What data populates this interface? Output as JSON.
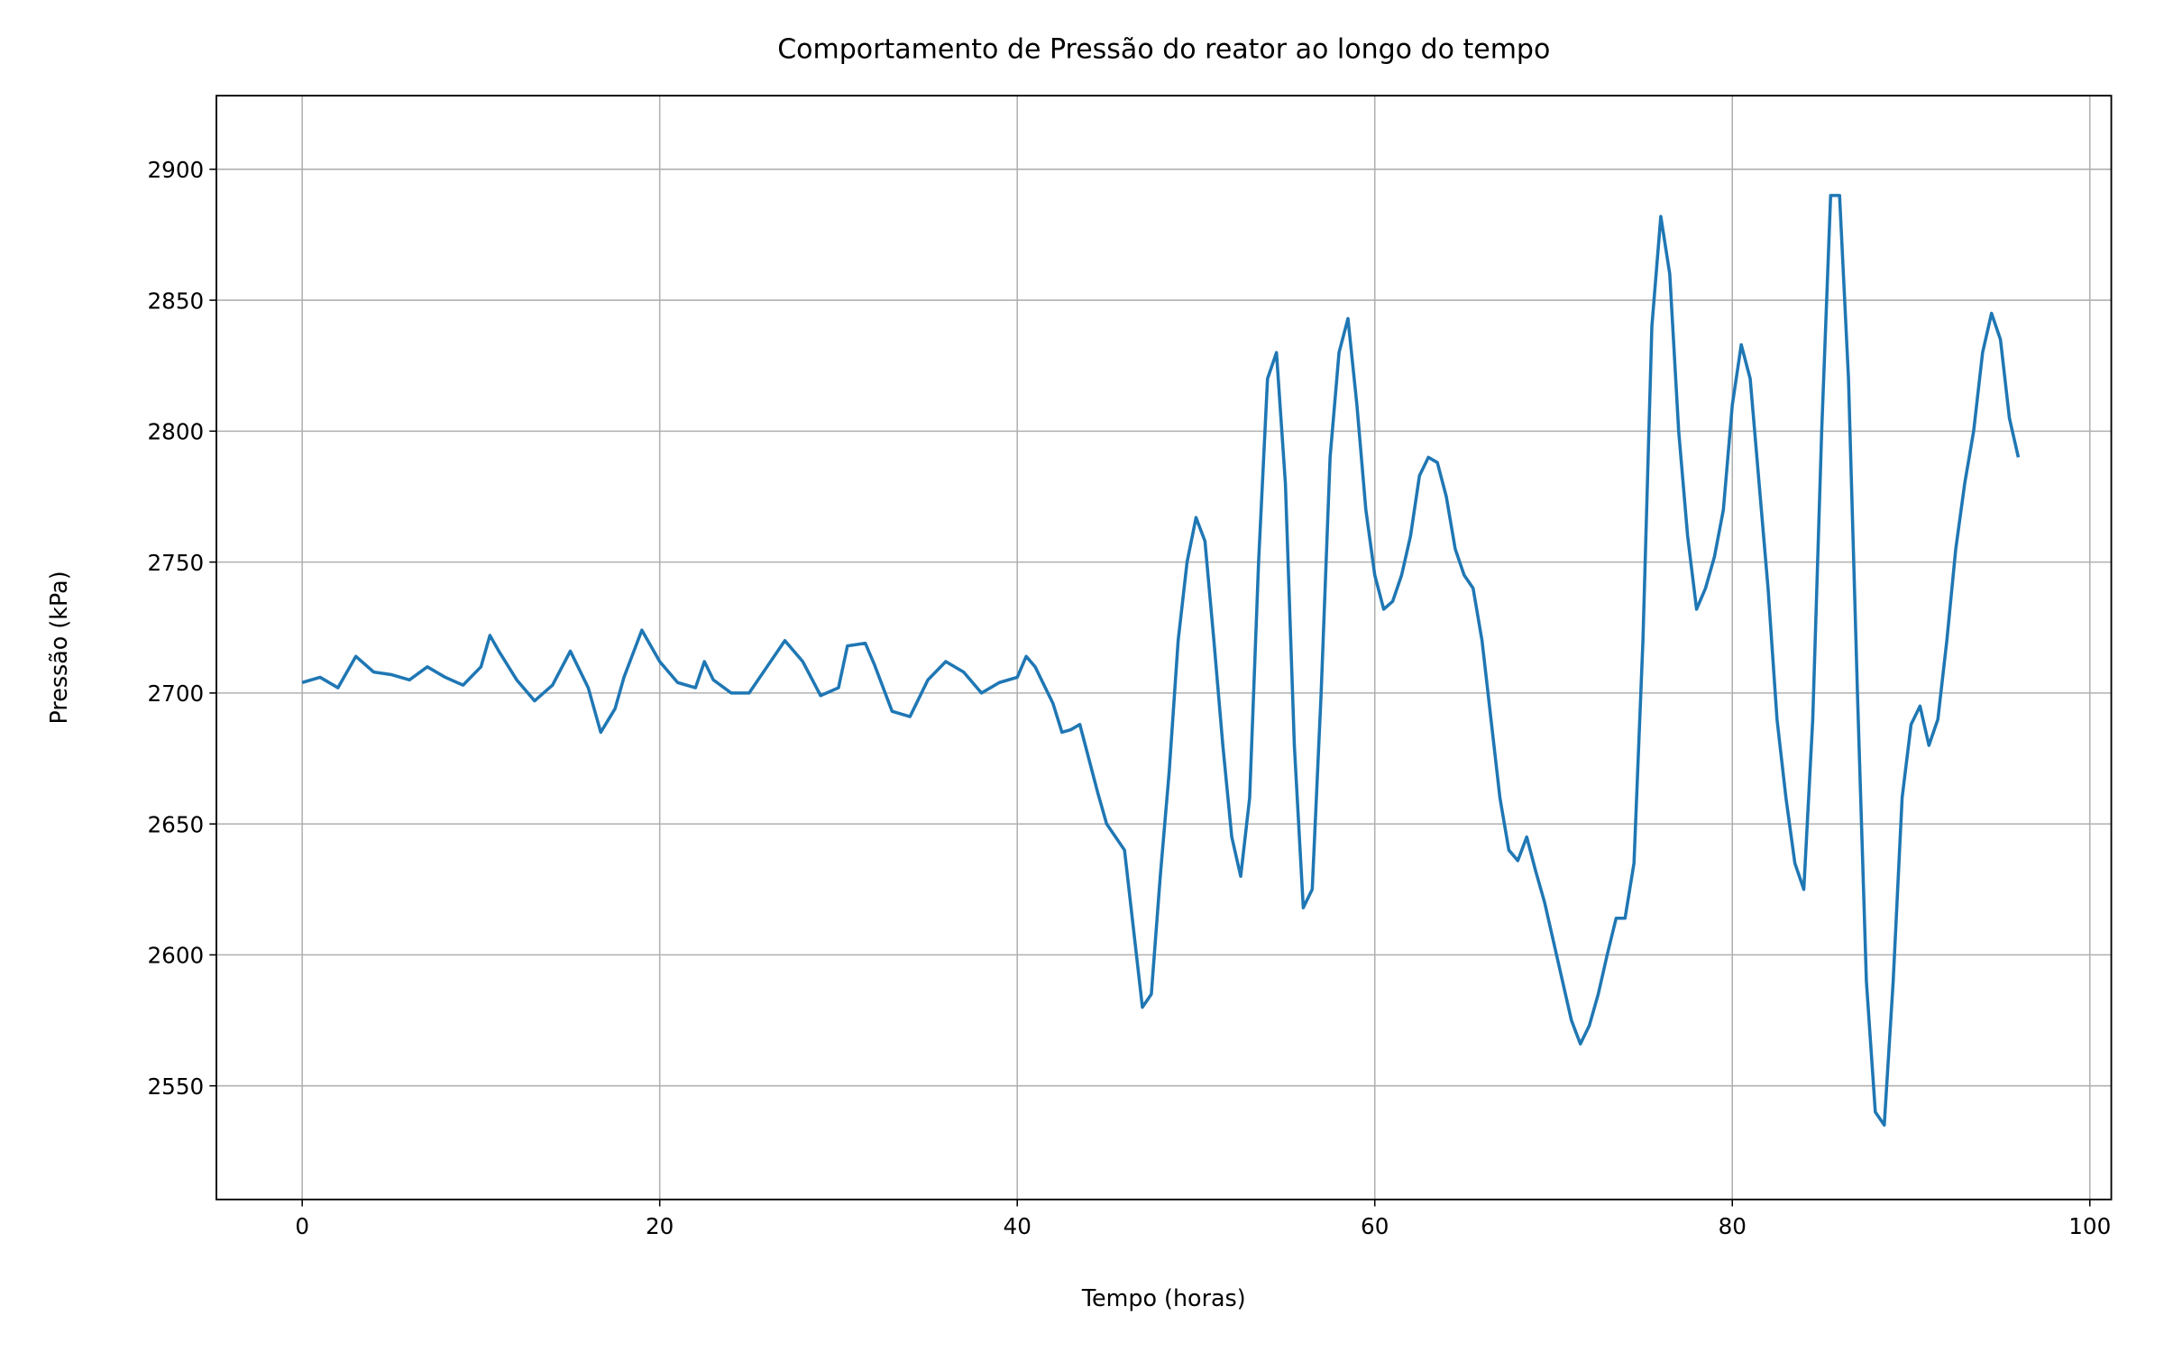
{
  "chart_data": {
    "type": "line",
    "title": "Comportamento de Pressão do reator ao longo do tempo",
    "x_label": "Tempo (horas)",
    "y_label": "Pressão (kPa)",
    "color": "#1f77b4",
    "grid": true,
    "xlim": [
      -4.8,
      101.2
    ],
    "ylim": [
      2506.6,
      2928.1
    ],
    "xticks": [
      0,
      20,
      40,
      60,
      80,
      100
    ],
    "yticks": [
      2550,
      2600,
      2650,
      2700,
      2750,
      2800,
      2850,
      2900
    ],
    "x": [
      0,
      1,
      2,
      3,
      4,
      5,
      6,
      7,
      8,
      9,
      10,
      10.5,
      11,
      12,
      13,
      14,
      15,
      16,
      16.7,
      17.5,
      18,
      19,
      20,
      21,
      22,
      22.5,
      23,
      24,
      25,
      26,
      27,
      28,
      29,
      30,
      30.5,
      31.5,
      32,
      33,
      34,
      35,
      36,
      37,
      38,
      39,
      40,
      40.5,
      41,
      42,
      42.5,
      43,
      43.5,
      44,
      44.5,
      45,
      45.5,
      46,
      46.5,
      47,
      47.5,
      48,
      48.5,
      49,
      49.5,
      50,
      50.5,
      51,
      51.5,
      52,
      52.5,
      53,
      53.5,
      54,
      54.5,
      55,
      55.5,
      56,
      56.5,
      57,
      57.5,
      58,
      58.5,
      59,
      59.5,
      60,
      60.5,
      61,
      61.5,
      62,
      62.5,
      63,
      63.5,
      64,
      64.5,
      65,
      65.5,
      66,
      66.5,
      67,
      67.5,
      68,
      68.5,
      69,
      69.5,
      70,
      70.5,
      71,
      71.5,
      72,
      72.5,
      73,
      73.5,
      74,
      74.5,
      75,
      75.5,
      76,
      76.5,
      77,
      77.5,
      78,
      78.5,
      79,
      79.5,
      80,
      80.5,
      81,
      81.5,
      82,
      82.5,
      83,
      83.5,
      84,
      84.5,
      85,
      85.5,
      86,
      86.5,
      87,
      87.5,
      88,
      88.5,
      89,
      89.5,
      90,
      90.5,
      91,
      91.5,
      92,
      92.5,
      93,
      93.5,
      94,
      94.5,
      95,
      95.5,
      96
    ],
    "values": [
      2704,
      2706,
      2702,
      2714,
      2708,
      2707,
      2705,
      2710,
      2706,
      2703,
      2710,
      2722,
      2716,
      2705,
      2697,
      2703,
      2716,
      2702,
      2685,
      2694,
      2706,
      2724,
      2712,
      2704,
      2702,
      2712,
      2705,
      2700,
      2700,
      2710,
      2720,
      2712,
      2699,
      2702,
      2718,
      2719,
      2711,
      2693,
      2691,
      2705,
      2712,
      2708,
      2700,
      2704,
      2706,
      2714,
      2710,
      2696,
      2685,
      2686,
      2688,
      2675,
      2662,
      2650,
      2645,
      2640,
      2610,
      2580,
      2585,
      2630,
      2670,
      2720,
      2750,
      2767,
      2758,
      2720,
      2680,
      2645,
      2630,
      2660,
      2750,
      2820,
      2830,
      2780,
      2680,
      2618,
      2625,
      2700,
      2790,
      2830,
      2843,
      2810,
      2770,
      2745,
      2732,
      2735,
      2745,
      2760,
      2783,
      2790,
      2788,
      2775,
      2755,
      2745,
      2740,
      2720,
      2690,
      2660,
      2640,
      2636,
      2645,
      2632,
      2620,
      2605,
      2590,
      2575,
      2566,
      2573,
      2585,
      2600,
      2614,
      2614,
      2635,
      2720,
      2840,
      2882,
      2860,
      2800,
      2760,
      2732,
      2740,
      2752,
      2770,
      2810,
      2833,
      2820,
      2780,
      2740,
      2690,
      2660,
      2635,
      2625,
      2690,
      2800,
      2890,
      2890,
      2820,
      2700,
      2590,
      2540,
      2535,
      2590,
      2660,
      2688,
      2695,
      2680,
      2690,
      2720,
      2755,
      2780,
      2800,
      2830,
      2845,
      2835,
      2805,
      2790
    ]
  }
}
